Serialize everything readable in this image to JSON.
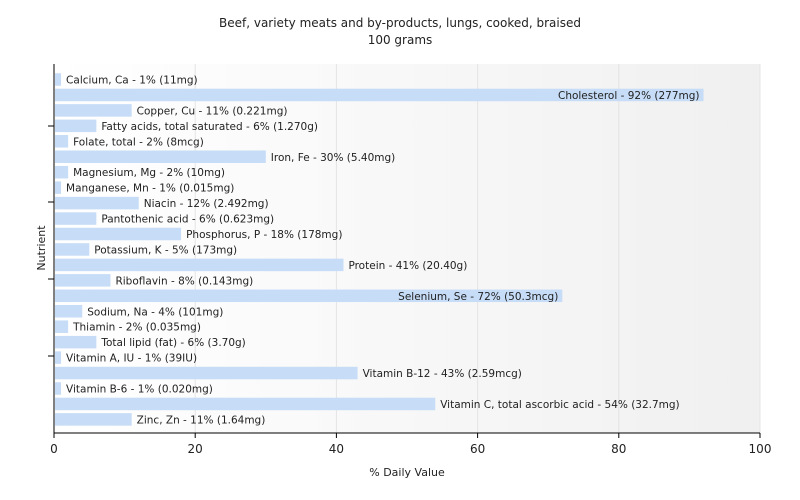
{
  "chart_data": {
    "type": "bar",
    "orientation": "horizontal",
    "title": "Beef, variety meats and by-products, lungs, cooked, braised",
    "subtitle": "100 grams",
    "xlabel": "% Daily Value",
    "ylabel": "Nutrient",
    "xlim": [
      0,
      100
    ],
    "xticks": [
      0,
      20,
      40,
      60,
      80,
      100
    ],
    "grid": true,
    "bar_color": "#c6dcf7",
    "categories": [
      "Calcium, Ca",
      "Cholesterol",
      "Copper, Cu",
      "Fatty acids, total saturated",
      "Folate, total",
      "Iron, Fe",
      "Magnesium, Mg",
      "Manganese, Mn",
      "Niacin",
      "Pantothenic acid",
      "Phosphorus, P",
      "Potassium, K",
      "Protein",
      "Riboflavin",
      "Selenium, Se",
      "Sodium, Na",
      "Thiamin",
      "Total lipid (fat)",
      "Vitamin A, IU",
      "Vitamin B-12",
      "Vitamin B-6",
      "Vitamin C, total ascorbic acid",
      "Zinc, Zn"
    ],
    "values": [
      1,
      92,
      11,
      6,
      2,
      30,
      2,
      1,
      12,
      6,
      18,
      5,
      41,
      8,
      72,
      4,
      2,
      6,
      1,
      43,
      1,
      54,
      11
    ],
    "labels": [
      "Calcium, Ca - 1% (11mg)",
      "Cholesterol - 92% (277mg)",
      "Copper, Cu - 11% (0.221mg)",
      "Fatty acids, total saturated - 6% (1.270g)",
      "Folate, total - 2% (8mcg)",
      "Iron, Fe - 30% (5.40mg)",
      "Magnesium, Mg - 2% (10mg)",
      "Manganese, Mn - 1% (0.015mg)",
      "Niacin - 12% (2.492mg)",
      "Pantothenic acid - 6% (0.623mg)",
      "Phosphorus, P - 18% (178mg)",
      "Potassium, K - 5% (173mg)",
      "Protein - 41% (20.40g)",
      "Riboflavin - 8% (0.143mg)",
      "Selenium, Se - 72% (50.3mcg)",
      "Sodium, Na - 4% (101mg)",
      "Thiamin - 2% (0.035mg)",
      "Total lipid (fat) - 6% (3.70g)",
      "Vitamin A, IU - 1% (39IU)",
      "Vitamin B-12 - 43% (2.59mcg)",
      "Vitamin B-6 - 1% (0.020mg)",
      "Vitamin C, total ascorbic acid - 54% (32.7mg)",
      "Zinc, Zn - 11% (1.64mg)"
    ],
    "labels_inside": [
      false,
      true,
      false,
      false,
      false,
      false,
      false,
      false,
      false,
      false,
      false,
      false,
      false,
      false,
      true,
      false,
      false,
      false,
      false,
      false,
      false,
      false,
      false
    ]
  }
}
